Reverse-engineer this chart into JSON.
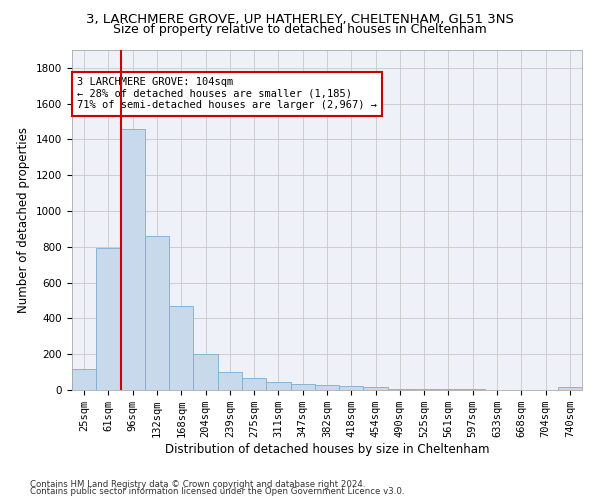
{
  "title_line1": "3, LARCHMERE GROVE, UP HATHERLEY, CHELTENHAM, GL51 3NS",
  "title_line2": "Size of property relative to detached houses in Cheltenham",
  "xlabel": "Distribution of detached houses by size in Cheltenham",
  "ylabel": "Number of detached properties",
  "bar_color": "#c9d9ec",
  "bar_edge_color": "#7aaed4",
  "categories": [
    "25sqm",
    "61sqm",
    "96sqm",
    "132sqm",
    "168sqm",
    "204sqm",
    "239sqm",
    "275sqm",
    "311sqm",
    "347sqm",
    "382sqm",
    "418sqm",
    "454sqm",
    "490sqm",
    "525sqm",
    "561sqm",
    "597sqm",
    "633sqm",
    "668sqm",
    "704sqm",
    "740sqm"
  ],
  "values": [
    120,
    795,
    1460,
    860,
    470,
    200,
    100,
    65,
    45,
    35,
    30,
    25,
    15,
    5,
    5,
    3,
    3,
    2,
    2,
    1,
    15
  ],
  "ylim": [
    0,
    1900
  ],
  "yticks": [
    0,
    200,
    400,
    600,
    800,
    1000,
    1200,
    1400,
    1600,
    1800
  ],
  "vline_index": 2,
  "vline_color": "#cc0000",
  "annotation_line1": "3 LARCHMERE GROVE: 104sqm",
  "annotation_line2": "← 28% of detached houses are smaller (1,185)",
  "annotation_line3": "71% of semi-detached houses are larger (2,967) →",
  "annotation_box_color": "#cc0000",
  "background_color": "#eef2f8",
  "footnote1": "Contains HM Land Registry data © Crown copyright and database right 2024.",
  "footnote2": "Contains public sector information licensed under the Open Government Licence v3.0.",
  "grid_color": "#c8c8c8",
  "title1_fontsize": 9.5,
  "title2_fontsize": 9,
  "axis_label_fontsize": 8.5,
  "tick_fontsize": 7.5,
  "annotation_fontsize": 7.5
}
